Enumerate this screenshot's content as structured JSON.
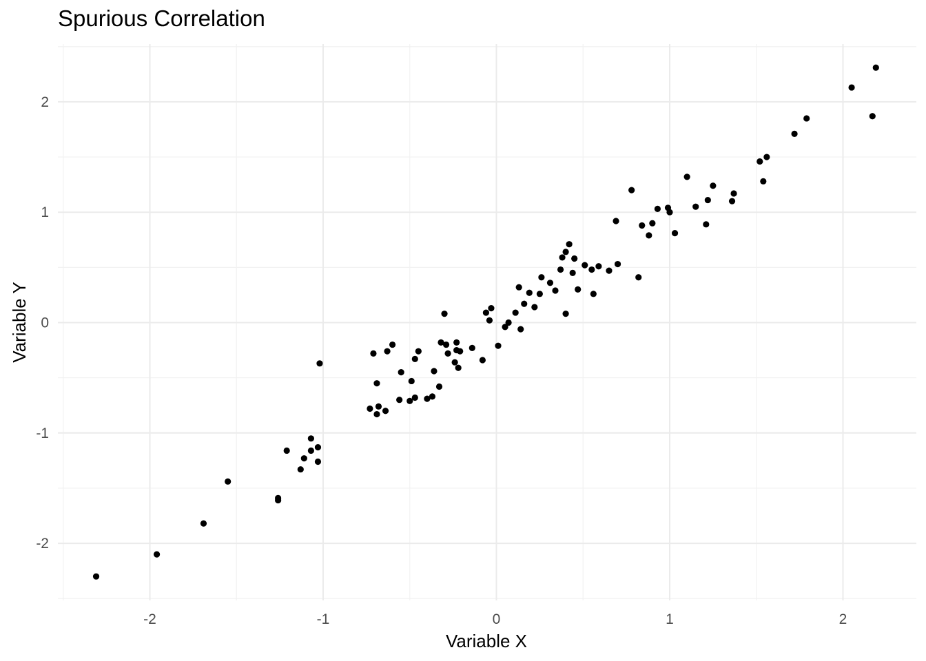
{
  "chart_data": {
    "type": "scatter",
    "title": "Spurious Correlation",
    "xlabel": "Variable X",
    "ylabel": "Variable Y",
    "xlim": [
      -2.5,
      2.4
    ],
    "ylim": [
      -2.5,
      2.5
    ],
    "x_ticks": [
      -2,
      -1,
      0,
      1,
      2
    ],
    "y_ticks": [
      -2,
      -1,
      0,
      1,
      2
    ],
    "x_tick_labels": [
      "-2",
      "-1",
      "0",
      "1",
      "2"
    ],
    "y_tick_labels": [
      "-2",
      "-1",
      "0",
      "1",
      "2"
    ],
    "grid": true,
    "point_color": "#000000",
    "points": [
      [
        -2.31,
        -2.3
      ],
      [
        -1.96,
        -2.1
      ],
      [
        -1.69,
        -1.82
      ],
      [
        -1.55,
        -1.44
      ],
      [
        -1.26,
        -1.59
      ],
      [
        -1.26,
        -1.61
      ],
      [
        -1.21,
        -1.16
      ],
      [
        -1.13,
        -1.33
      ],
      [
        -1.11,
        -1.23
      ],
      [
        -1.07,
        -1.16
      ],
      [
        -1.07,
        -1.05
      ],
      [
        -1.03,
        -1.13
      ],
      [
        -1.03,
        -1.26
      ],
      [
        -1.02,
        -0.37
      ],
      [
        -0.73,
        -0.78
      ],
      [
        -0.71,
        -0.28
      ],
      [
        -0.69,
        -0.55
      ],
      [
        -0.69,
        -0.83
      ],
      [
        -0.68,
        -0.76
      ],
      [
        -0.64,
        -0.8
      ],
      [
        -0.63,
        -0.26
      ],
      [
        -0.6,
        -0.2
      ],
      [
        -0.56,
        -0.7
      ],
      [
        -0.55,
        -0.45
      ],
      [
        -0.5,
        -0.71
      ],
      [
        -0.49,
        -0.53
      ],
      [
        -0.47,
        -0.33
      ],
      [
        -0.47,
        -0.68
      ],
      [
        -0.45,
        -0.26
      ],
      [
        -0.4,
        -0.69
      ],
      [
        -0.37,
        -0.67
      ],
      [
        -0.36,
        -0.44
      ],
      [
        -0.33,
        -0.58
      ],
      [
        -0.32,
        -0.18
      ],
      [
        -0.3,
        0.08
      ],
      [
        -0.29,
        -0.2
      ],
      [
        -0.28,
        -0.28
      ],
      [
        -0.24,
        -0.36
      ],
      [
        -0.23,
        -0.18
      ],
      [
        -0.23,
        -0.25
      ],
      [
        -0.22,
        -0.41
      ],
      [
        -0.21,
        -0.26
      ],
      [
        -0.14,
        -0.23
      ],
      [
        -0.08,
        -0.34
      ],
      [
        -0.06,
        0.09
      ],
      [
        -0.04,
        0.02
      ],
      [
        -0.03,
        0.13
      ],
      [
        0.01,
        -0.21
      ],
      [
        0.05,
        -0.04
      ],
      [
        0.07,
        0.0
      ],
      [
        0.11,
        0.09
      ],
      [
        0.13,
        0.32
      ],
      [
        0.14,
        -0.06
      ],
      [
        0.16,
        0.17
      ],
      [
        0.19,
        0.27
      ],
      [
        0.22,
        0.14
      ],
      [
        0.25,
        0.26
      ],
      [
        0.26,
        0.41
      ],
      [
        0.31,
        0.36
      ],
      [
        0.34,
        0.29
      ],
      [
        0.37,
        0.48
      ],
      [
        0.38,
        0.59
      ],
      [
        0.4,
        0.64
      ],
      [
        0.4,
        0.08
      ],
      [
        0.42,
        0.71
      ],
      [
        0.44,
        0.45
      ],
      [
        0.45,
        0.58
      ],
      [
        0.47,
        0.3
      ],
      [
        0.51,
        0.52
      ],
      [
        0.55,
        0.48
      ],
      [
        0.56,
        0.26
      ],
      [
        0.59,
        0.51
      ],
      [
        0.65,
        0.47
      ],
      [
        0.69,
        0.92
      ],
      [
        0.7,
        0.53
      ],
      [
        0.78,
        1.2
      ],
      [
        0.82,
        0.41
      ],
      [
        0.84,
        0.88
      ],
      [
        0.88,
        0.79
      ],
      [
        0.9,
        0.9
      ],
      [
        0.93,
        1.03
      ],
      [
        0.99,
        1.04
      ],
      [
        1.0,
        1.0
      ],
      [
        1.03,
        0.81
      ],
      [
        1.1,
        1.32
      ],
      [
        1.15,
        1.05
      ],
      [
        1.21,
        0.89
      ],
      [
        1.22,
        1.11
      ],
      [
        1.25,
        1.24
      ],
      [
        1.36,
        1.1
      ],
      [
        1.37,
        1.17
      ],
      [
        1.52,
        1.46
      ],
      [
        1.54,
        1.28
      ],
      [
        1.56,
        1.5
      ],
      [
        1.72,
        1.71
      ],
      [
        1.79,
        1.85
      ],
      [
        2.05,
        2.13
      ],
      [
        2.17,
        1.87
      ],
      [
        2.19,
        2.31
      ]
    ]
  }
}
